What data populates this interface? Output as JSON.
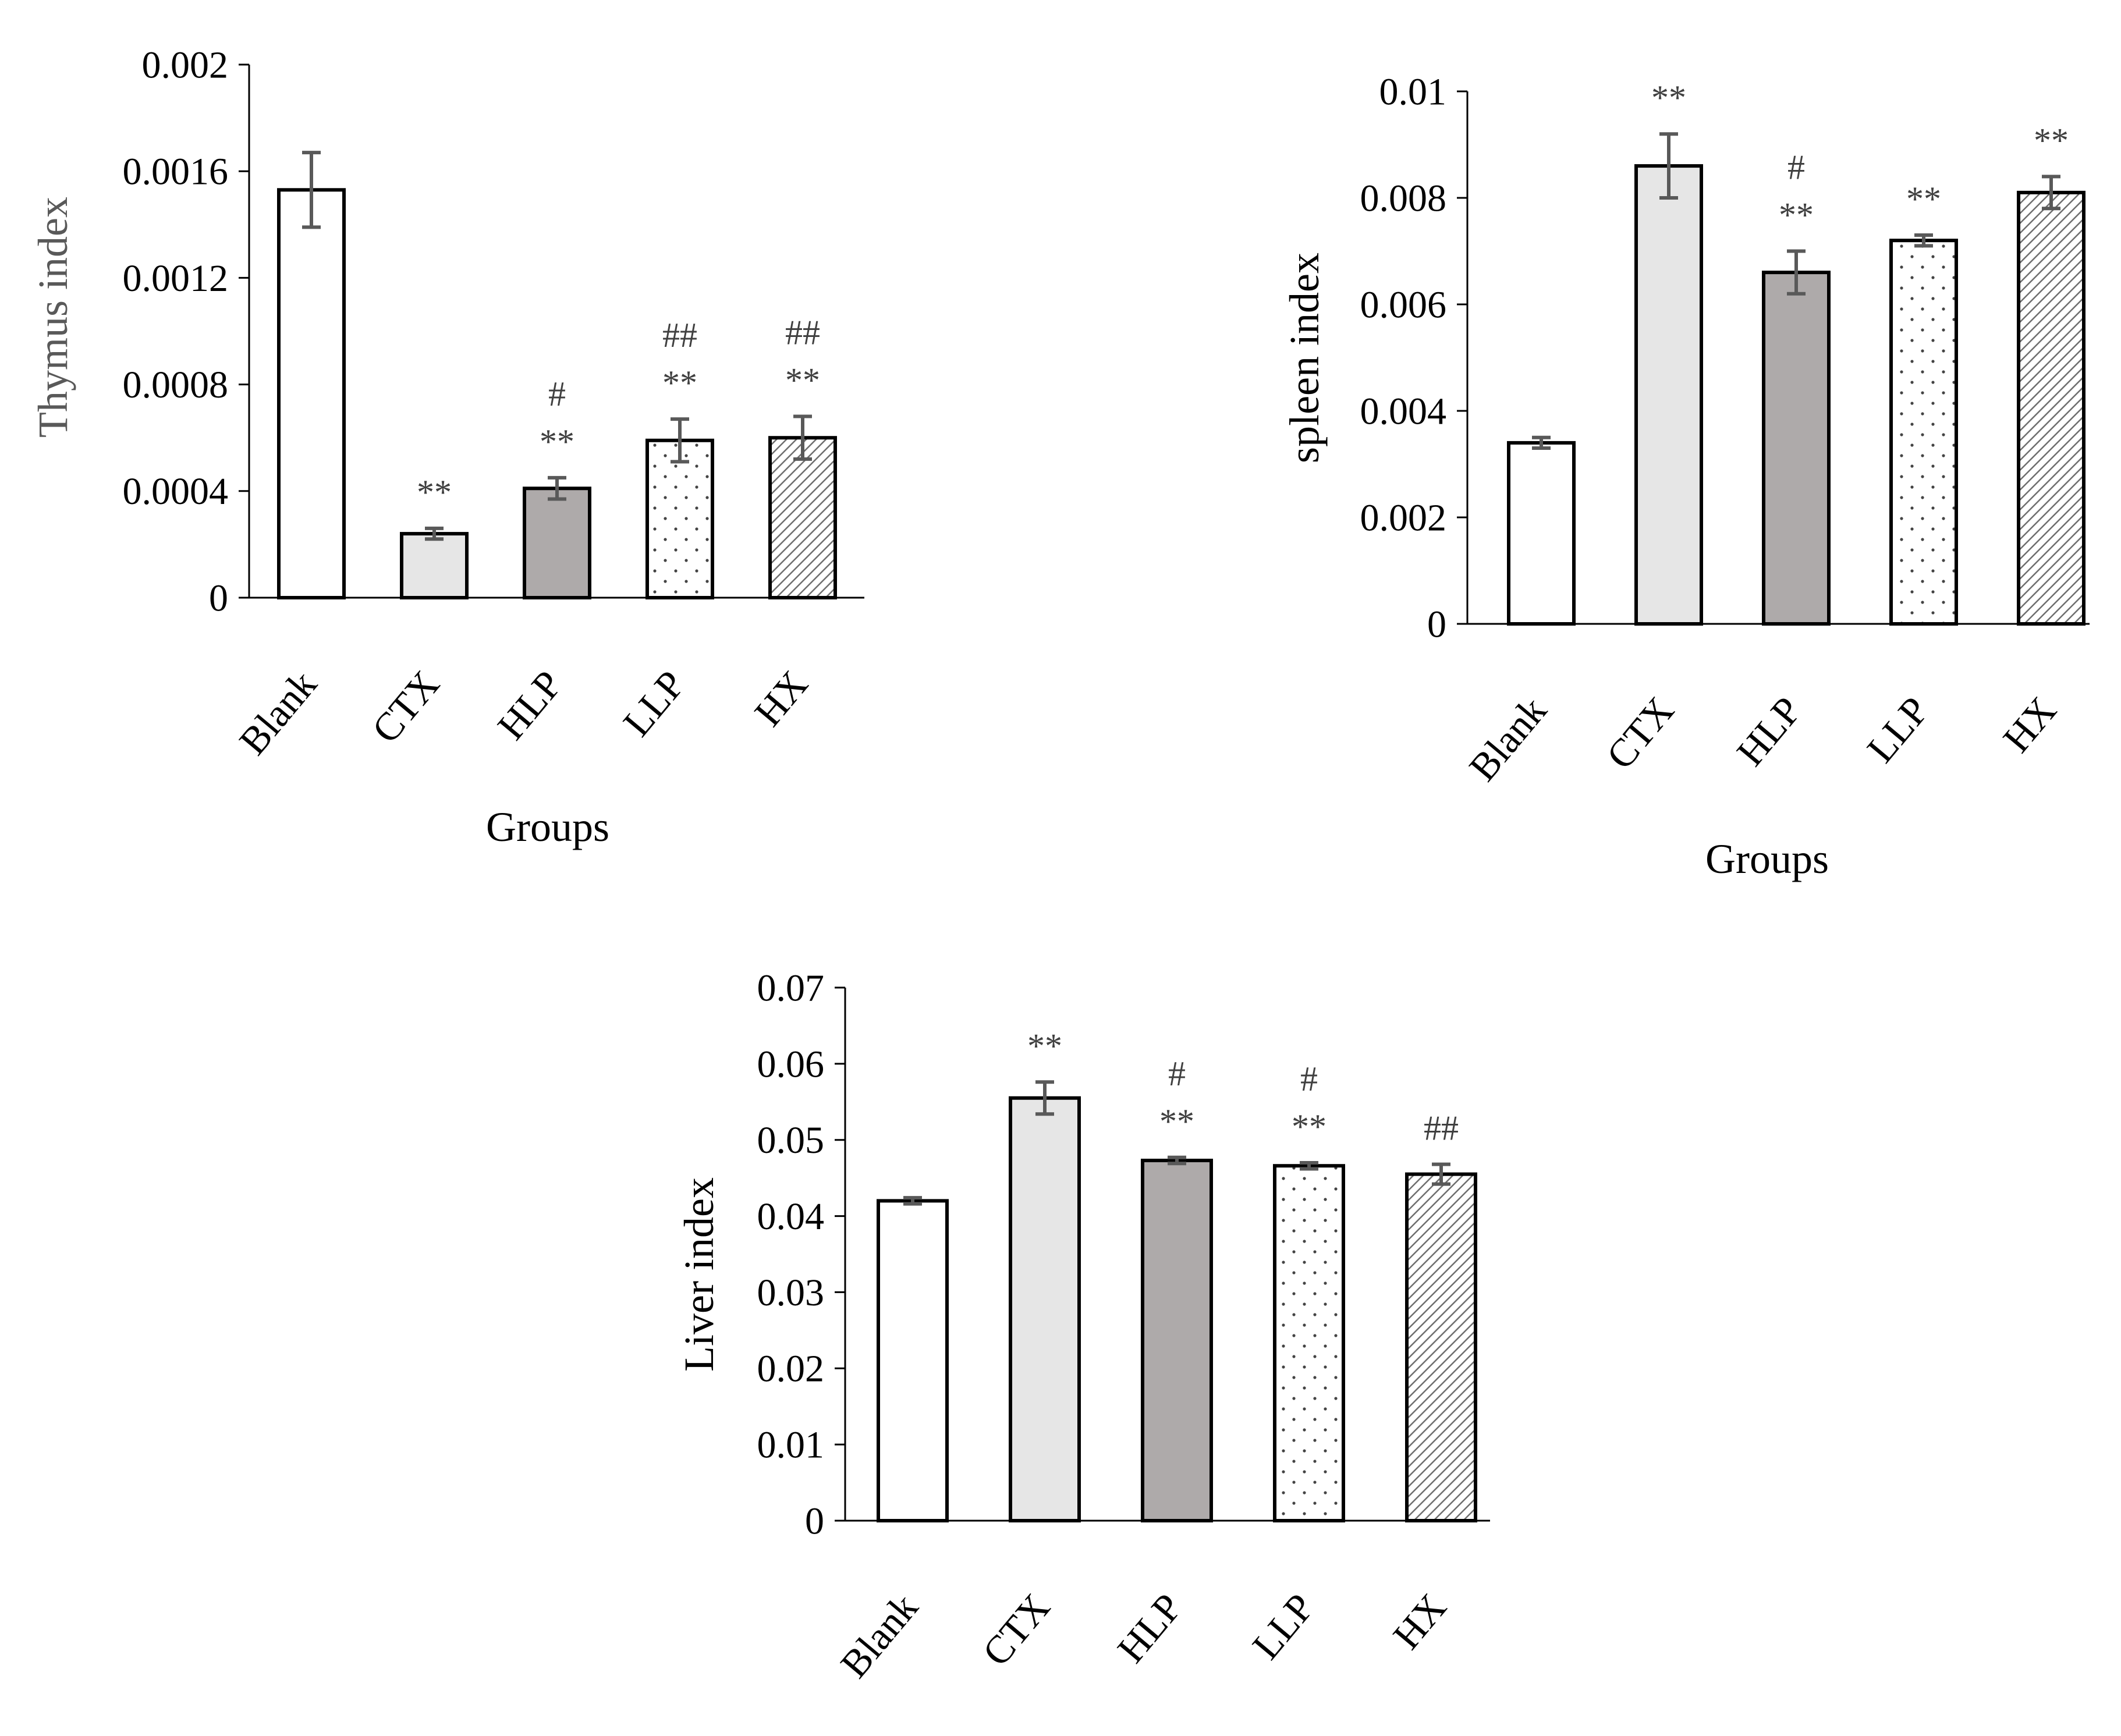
{
  "chart_data": [
    {
      "type": "bar",
      "title": "",
      "xlabel": "Groups",
      "ylabel": "Thymus index",
      "ylim": [
        0,
        0.002
      ],
      "yticks": [
        "0",
        "0.0004",
        "0.0008",
        "0.0012",
        "0.0016",
        "0.002"
      ],
      "categories": [
        "Blank",
        "CTX",
        "HLP",
        "LLP",
        "HX"
      ],
      "values": [
        0.00153,
        0.00024,
        0.00041,
        0.00059,
        0.0006
      ],
      "errors": [
        0.00014,
        2e-05,
        4e-05,
        8e-05,
        8e-05
      ],
      "annotations": [
        {
          "category": "CTX",
          "lines": [
            "**"
          ]
        },
        {
          "category": "HLP",
          "lines": [
            "#",
            "**"
          ]
        },
        {
          "category": "LLP",
          "lines": [
            "##",
            "**"
          ]
        },
        {
          "category": "HX",
          "lines": [
            "##",
            "**"
          ]
        }
      ]
    },
    {
      "type": "bar",
      "title": "",
      "xlabel": "Groups",
      "ylabel": "spleen index",
      "ylim": [
        0,
        0.01
      ],
      "yticks": [
        "0",
        "0.002",
        "0.004",
        "0.006",
        "0.008",
        "0.01"
      ],
      "categories": [
        "Blank",
        "CTX",
        "HLP",
        "LLP",
        "HX"
      ],
      "values": [
        0.0034,
        0.0086,
        0.0066,
        0.0072,
        0.0081
      ],
      "errors": [
        0.0001,
        0.0006,
        0.0004,
        0.0001,
        0.0003
      ],
      "annotations": [
        {
          "category": "CTX",
          "lines": [
            "**"
          ]
        },
        {
          "category": "HLP",
          "lines": [
            "#",
            "**"
          ]
        },
        {
          "category": "LLP",
          "lines": [
            "**"
          ]
        },
        {
          "category": "HX",
          "lines": [
            "**"
          ]
        }
      ]
    },
    {
      "type": "bar",
      "title": "",
      "xlabel": "",
      "ylabel": "Liver index",
      "ylim": [
        0,
        0.07
      ],
      "yticks": [
        "0",
        "0.01",
        "0.02",
        "0.03",
        "0.04",
        "0.05",
        "0.06",
        "0.07"
      ],
      "categories": [
        "Blank",
        "CTX",
        "HLP",
        "LLP",
        "HX"
      ],
      "values": [
        0.042,
        0.0555,
        0.0473,
        0.0466,
        0.0455
      ],
      "errors": [
        0.0004,
        0.0021,
        0.0004,
        0.0004,
        0.0013
      ],
      "annotations": [
        {
          "category": "CTX",
          "lines": [
            "**"
          ]
        },
        {
          "category": "HLP",
          "lines": [
            "#",
            "**"
          ]
        },
        {
          "category": "LLP",
          "lines": [
            "#",
            "**"
          ]
        },
        {
          "category": "HX",
          "lines": [
            "##"
          ]
        }
      ]
    }
  ],
  "styles": {
    "bar_stroke": "#000000",
    "axis_color": "#000000",
    "error_color": "#595959",
    "annotation_color": "#404040",
    "ylabel_color": "#595959",
    "fills": {
      "Blank": "#ffffff",
      "CTX": "#e6e6e6",
      "HLP": "#aeaaaa",
      "LLP": "dots",
      "HX": "diagonal-hatch"
    }
  }
}
